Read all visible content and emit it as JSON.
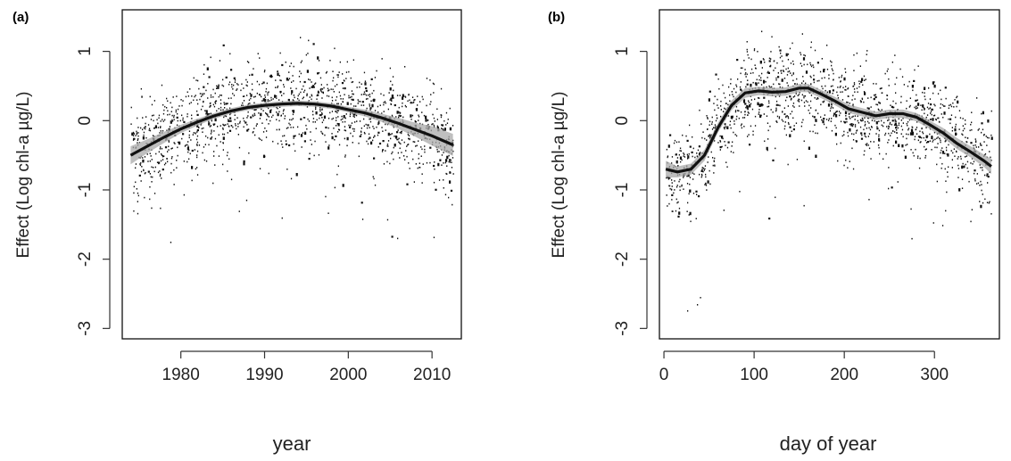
{
  "chart_data": [
    {
      "panel": "(a)",
      "type": "line",
      "xlabel": "year",
      "ylabel": "Effect (Log chl-a µg/L)",
      "xlim": [
        1973,
        2013.5
      ],
      "ylim": [
        -3.15,
        1.6
      ],
      "xticks": [
        1980,
        1990,
        2000,
        2010
      ],
      "yticks": [
        -3,
        -2,
        -1,
        0,
        1
      ],
      "series": [
        {
          "x": [
            1974,
            1976,
            1978,
            1980,
            1982,
            1984,
            1986,
            1988,
            1990,
            1992,
            1994,
            1996,
            1998,
            2000,
            2002,
            2004,
            2006,
            2008,
            2010,
            2012.5
          ],
          "y": [
            -0.5,
            -0.37,
            -0.24,
            -0.12,
            -0.02,
            0.07,
            0.14,
            0.19,
            0.22,
            0.24,
            0.25,
            0.24,
            0.21,
            0.16,
            0.11,
            0.04,
            -0.04,
            -0.13,
            -0.22,
            -0.35
          ],
          "band_low": [
            -0.63,
            -0.47,
            -0.32,
            -0.18,
            -0.07,
            0.03,
            0.1,
            0.15,
            0.18,
            0.2,
            0.21,
            0.2,
            0.17,
            0.12,
            0.06,
            -0.02,
            -0.12,
            -0.23,
            -0.36,
            -0.51
          ],
          "band_high": [
            -0.37,
            -0.27,
            -0.16,
            -0.06,
            0.03,
            0.11,
            0.18,
            0.23,
            0.26,
            0.28,
            0.29,
            0.28,
            0.25,
            0.2,
            0.16,
            0.1,
            0.04,
            -0.03,
            -0.08,
            -0.19
          ]
        }
      ]
    },
    {
      "panel": "(b)",
      "type": "line",
      "xlabel": "day of year",
      "ylabel": "Effect (Log chl-a µg/L)",
      "xlim": [
        -5,
        372
      ],
      "ylim": [
        -3.15,
        1.6
      ],
      "xticks": [
        0,
        100,
        200,
        300
      ],
      "yticks": [
        -3,
        -2,
        -1,
        0,
        1
      ],
      "series": [
        {
          "x": [
            2,
            15,
            30,
            45,
            60,
            75,
            90,
            105,
            120,
            135,
            150,
            160,
            175,
            190,
            205,
            220,
            235,
            250,
            265,
            280,
            295,
            310,
            325,
            340,
            355,
            363
          ],
          "y": [
            -0.7,
            -0.74,
            -0.7,
            -0.5,
            -0.1,
            0.22,
            0.4,
            0.43,
            0.41,
            0.42,
            0.47,
            0.47,
            0.38,
            0.28,
            0.17,
            0.12,
            0.07,
            0.1,
            0.1,
            0.05,
            -0.06,
            -0.18,
            -0.33,
            -0.45,
            -0.58,
            -0.66
          ],
          "band_low": [
            -0.82,
            -0.82,
            -0.78,
            -0.58,
            -0.17,
            0.15,
            0.33,
            0.37,
            0.35,
            0.36,
            0.41,
            0.41,
            0.32,
            0.22,
            0.11,
            0.06,
            0.01,
            0.04,
            0.04,
            -0.01,
            -0.12,
            -0.25,
            -0.41,
            -0.53,
            -0.67,
            -0.77
          ],
          "band_high": [
            -0.58,
            -0.66,
            -0.62,
            -0.42,
            -0.03,
            0.29,
            0.47,
            0.49,
            0.47,
            0.48,
            0.53,
            0.53,
            0.44,
            0.34,
            0.23,
            0.18,
            0.13,
            0.16,
            0.16,
            0.11,
            0.0,
            -0.11,
            -0.25,
            -0.37,
            -0.49,
            -0.55
          ]
        }
      ]
    }
  ]
}
